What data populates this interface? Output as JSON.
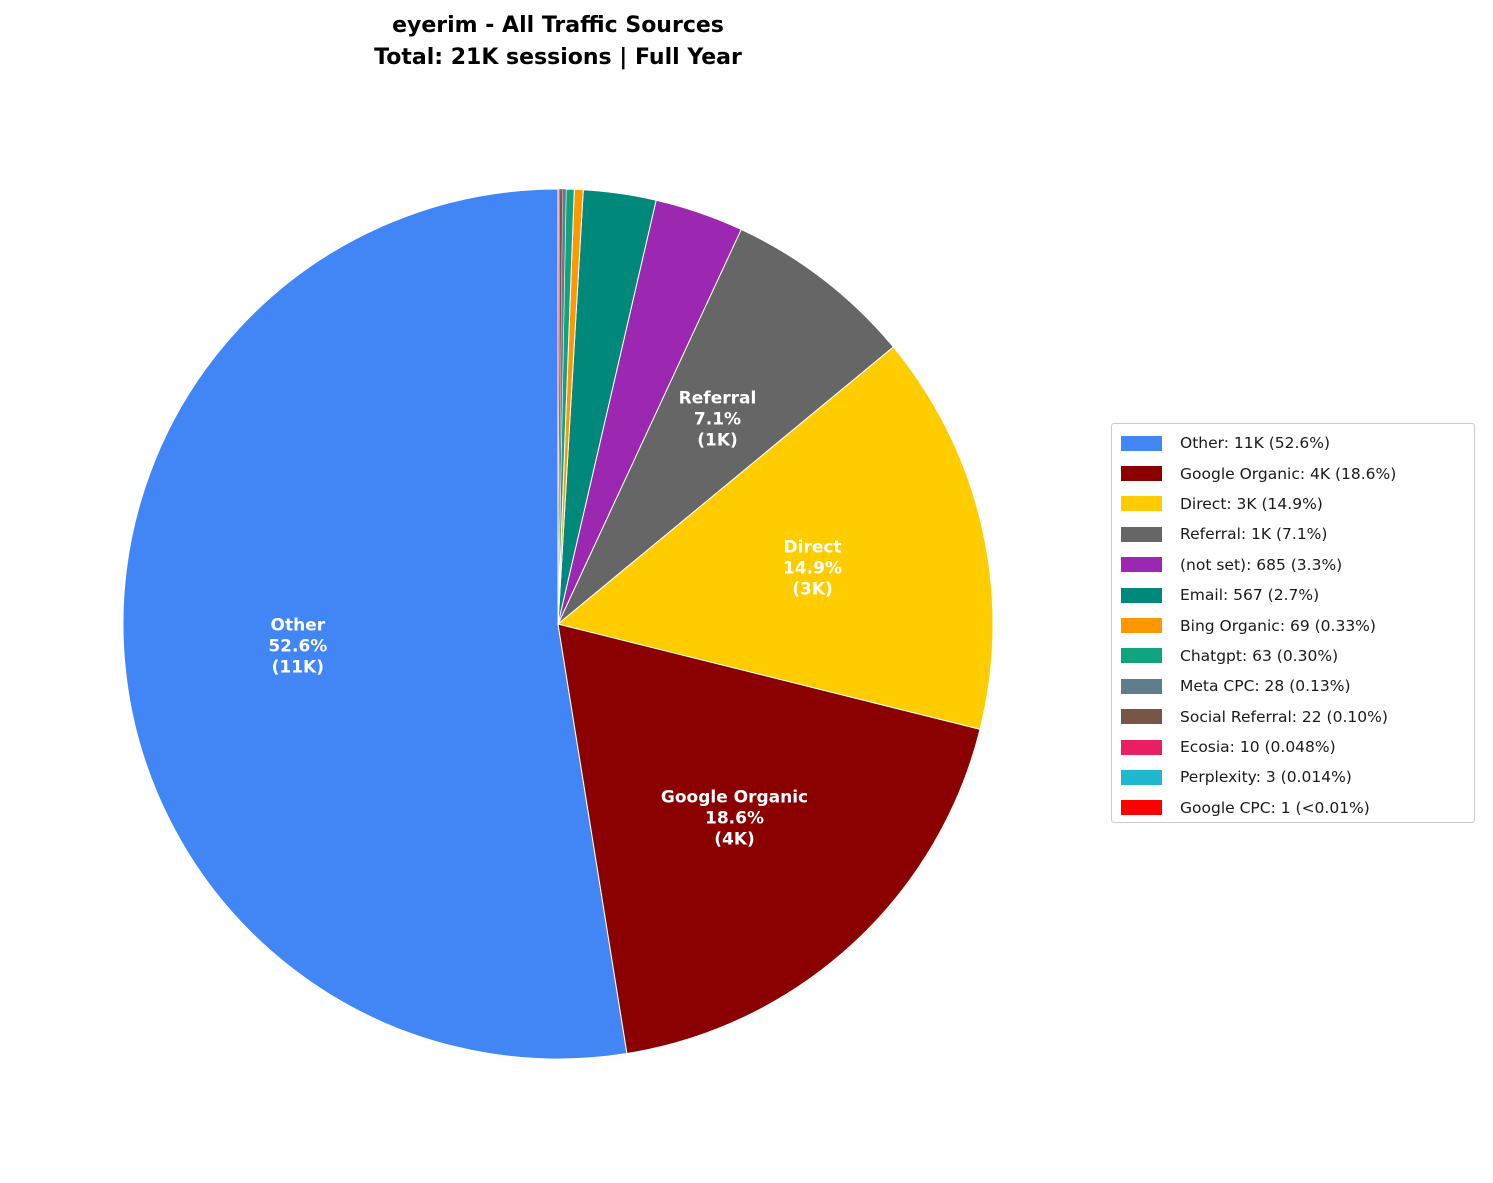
{
  "chart_data": {
    "type": "pie",
    "title": "eyerim - All Traffic Sources",
    "subtitle": "Total: 21K sessions | Full Year",
    "start_angle": 90,
    "direction": "counterclockwise",
    "legend_position": "right",
    "slices": [
      {
        "name": "Other",
        "percent": 52.6,
        "count_label": "11K",
        "legend": "Other: 11K (52.6%)",
        "color": "#4285F4",
        "inner_label": [
          "Other",
          "52.6%",
          "(11K)"
        ]
      },
      {
        "name": "Google Organic",
        "percent": 18.6,
        "count_label": "4K",
        "legend": "Google Organic: 4K (18.6%)",
        "color": "#8B0000",
        "inner_label": [
          "Google Organic",
          "18.6%",
          "(4K)"
        ]
      },
      {
        "name": "Direct",
        "percent": 14.9,
        "count_label": "3K",
        "legend": "Direct: 3K (14.9%)",
        "color": "#FFCC00",
        "inner_label": [
          "Direct",
          "14.9%",
          "(3K)"
        ]
      },
      {
        "name": "Referral",
        "percent": 7.1,
        "count_label": "1K",
        "legend": "Referral: 1K (7.1%)",
        "color": "#666666",
        "inner_label": [
          "Referral",
          "7.1%",
          "(1K)"
        ]
      },
      {
        "name": "(not set)",
        "percent": 3.3,
        "count_label": "685",
        "legend": "(not set): 685 (3.3%)",
        "color": "#9C27B0"
      },
      {
        "name": "Email",
        "percent": 2.7,
        "count_label": "567",
        "legend": "Email: 567 (2.7%)",
        "color": "#00897B"
      },
      {
        "name": "Bing Organic",
        "percent": 0.33,
        "count_label": "69",
        "legend": "Bing Organic: 69 (0.33%)",
        "color": "#FF9800"
      },
      {
        "name": "Chatgpt",
        "percent": 0.3,
        "count_label": "63",
        "legend": "Chatgpt: 63 (0.30%)",
        "color": "#10A37F"
      },
      {
        "name": "Meta CPC",
        "percent": 0.13,
        "count_label": "28",
        "legend": "Meta CPC: 28 (0.13%)",
        "color": "#607D8B"
      },
      {
        "name": "Social Referral",
        "percent": 0.1,
        "count_label": "22",
        "legend": "Social Referral: 22 (0.10%)",
        "color": "#795548"
      },
      {
        "name": "Ecosia",
        "percent": 0.048,
        "count_label": "10",
        "legend": "Ecosia: 10 (0.048%)",
        "color": "#E91E63"
      },
      {
        "name": "Perplexity",
        "percent": 0.014,
        "count_label": "3",
        "legend": "Perplexity: 3 (0.014%)",
        "color": "#20B8CD"
      },
      {
        "name": "Google CPC",
        "percent": 0.005,
        "count_label": "1",
        "legend": "Google CPC: 1 (<0.01%)",
        "color": "#FF0000"
      }
    ]
  }
}
